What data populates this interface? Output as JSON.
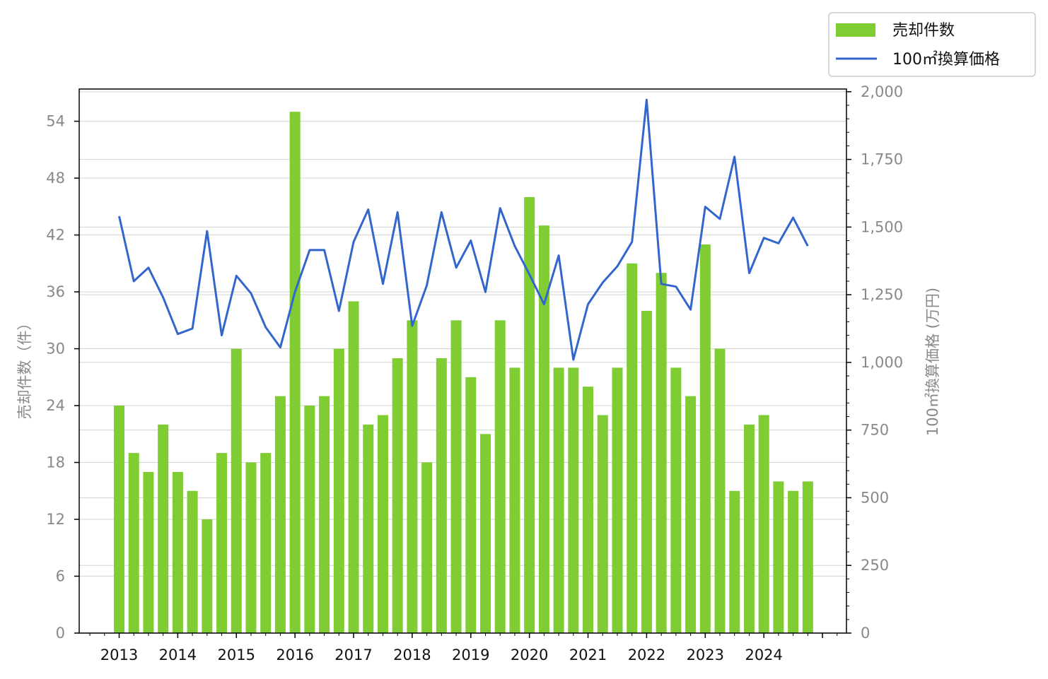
{
  "chart_data": {
    "type": "bar",
    "title": "",
    "xlabel": "",
    "ylabel": "売却件数（件）",
    "y2label": "100㎡換算価格 (万円)",
    "ylim": [
      0,
      57.4
    ],
    "y2lim": [
      0,
      2010
    ],
    "yticks": [
      "0",
      "6",
      "12",
      "18",
      "24",
      "30",
      "36",
      "42",
      "48",
      "54"
    ],
    "y2ticks": [
      "0",
      "250",
      "500",
      "750",
      "1,000",
      "1,250",
      "1,500",
      "1,750",
      "2,000"
    ],
    "year_labels": [
      "2013",
      "2014",
      "2015",
      "2016",
      "2017",
      "2018",
      "2019",
      "2020",
      "2021",
      "2022",
      "2023",
      "2024"
    ],
    "grid": true,
    "legend_position": "top-right, above plot",
    "colors": {
      "bar": "#7fcc33",
      "line": "#3366cc",
      "grid": "#d3d3d3"
    },
    "quarters": [
      "2013Q1",
      "2013Q2",
      "2013Q3",
      "2013Q4",
      "2014Q1",
      "2014Q2",
      "2014Q3",
      "2014Q4",
      "2015Q1",
      "2015Q2",
      "2015Q3",
      "2015Q4",
      "2016Q1",
      "2016Q2",
      "2016Q3",
      "2016Q4",
      "2017Q1",
      "2017Q2",
      "2017Q3",
      "2017Q4",
      "2018Q1",
      "2018Q2",
      "2018Q3",
      "2018Q4",
      "2019Q1",
      "2019Q2",
      "2019Q3",
      "2019Q4",
      "2020Q1",
      "2020Q2",
      "2020Q3",
      "2020Q4",
      "2021Q1",
      "2021Q2",
      "2021Q3",
      "2021Q4",
      "2022Q1",
      "2022Q2",
      "2022Q3",
      "2022Q4",
      "2023Q1",
      "2023Q2",
      "2023Q3",
      "2023Q4",
      "2024Q1",
      "2024Q2",
      "2024Q3",
      "2024Q4"
    ],
    "series": [
      {
        "name": "売却件数",
        "type": "bar",
        "axis": "left",
        "values": [
          24,
          19,
          17,
          22,
          17,
          15,
          12,
          19,
          30,
          18,
          19,
          25,
          55,
          24,
          25,
          30,
          35,
          22,
          23,
          29,
          33,
          18,
          29,
          33,
          27,
          21,
          33,
          28,
          46,
          43,
          28,
          28,
          26,
          23,
          28,
          39,
          34,
          38,
          28,
          25,
          41,
          30,
          15,
          22,
          23,
          16,
          15,
          16
        ]
      },
      {
        "name": "100㎡換算価格",
        "type": "line",
        "axis": "right",
        "values": [
          1540,
          1300,
          1350,
          1240,
          1105,
          1125,
          1485,
          1100,
          1320,
          1255,
          1130,
          1055,
          1260,
          1415,
          1415,
          1190,
          1445,
          1565,
          1290,
          1555,
          1135,
          1285,
          1555,
          1350,
          1450,
          1260,
          1570,
          1430,
          1325,
          1215,
          1395,
          1010,
          1215,
          1295,
          1355,
          1445,
          1970,
          1290,
          1280,
          1195,
          1575,
          1530,
          1760,
          1330,
          1460,
          1440,
          1535,
          1430
        ]
      }
    ]
  }
}
